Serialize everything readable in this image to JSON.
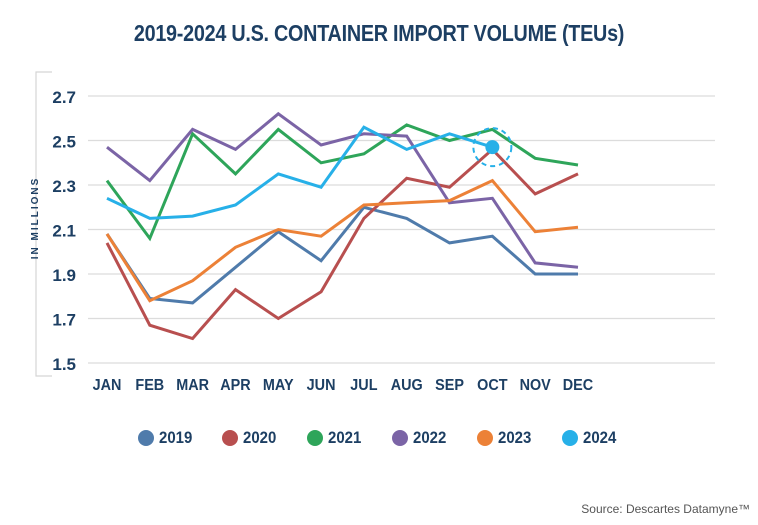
{
  "chart_data": {
    "type": "line",
    "title": "2019-2024 U.S. CONTAINER IMPORT VOLUME (TEUs)",
    "xlabel": "",
    "ylabel": "IN MILLIONS",
    "ylim": [
      1.5,
      2.7
    ],
    "yticks": [
      "2.7",
      "2.5",
      "2.3",
      "2.1",
      "1.9",
      "1.7",
      "1.5"
    ],
    "ytick_values": [
      2.7,
      2.5,
      2.3,
      2.1,
      1.9,
      1.7,
      1.5
    ],
    "grid": true,
    "legend_position": "bottom",
    "categories": [
      "JAN",
      "FEB",
      "MAR",
      "APR",
      "MAY",
      "JUN",
      "JUL",
      "AUG",
      "SEP",
      "OCT",
      "NOV",
      "DEC"
    ],
    "series": [
      {
        "name": "2019",
        "color": "#4f7bab",
        "values": [
          2.08,
          1.79,
          1.77,
          1.93,
          2.09,
          1.96,
          2.2,
          2.15,
          2.04,
          2.07,
          1.9,
          1.9
        ]
      },
      {
        "name": "2020",
        "color": "#b84f4f",
        "values": [
          2.04,
          1.67,
          1.61,
          1.83,
          1.7,
          1.82,
          2.15,
          2.33,
          2.29,
          2.46,
          2.26,
          2.35
        ]
      },
      {
        "name": "2021",
        "color": "#2ea55a",
        "values": [
          2.32,
          2.06,
          2.53,
          2.35,
          2.55,
          2.4,
          2.44,
          2.57,
          2.5,
          2.55,
          2.42,
          2.39
        ]
      },
      {
        "name": "2022",
        "color": "#7b64a6",
        "values": [
          2.47,
          2.32,
          2.55,
          2.46,
          2.62,
          2.48,
          2.53,
          2.52,
          2.22,
          2.24,
          1.95,
          1.93
        ]
      },
      {
        "name": "2023",
        "color": "#ec8137",
        "values": [
          2.08,
          1.78,
          1.87,
          2.02,
          2.1,
          2.07,
          2.21,
          2.22,
          2.23,
          2.32,
          2.09,
          2.11
        ]
      },
      {
        "name": "2024",
        "color": "#27b0e8",
        "values": [
          2.24,
          2.15,
          2.16,
          2.21,
          2.35,
          2.29,
          2.56,
          2.46,
          2.53,
          2.47,
          null,
          null
        ]
      }
    ],
    "annotations": [
      {
        "series": "2024",
        "category": "OCT",
        "value": 2.47,
        "style": "highlighted-point-dashed-circle"
      }
    ]
  },
  "source": "Source: Descartes Datamyne™"
}
